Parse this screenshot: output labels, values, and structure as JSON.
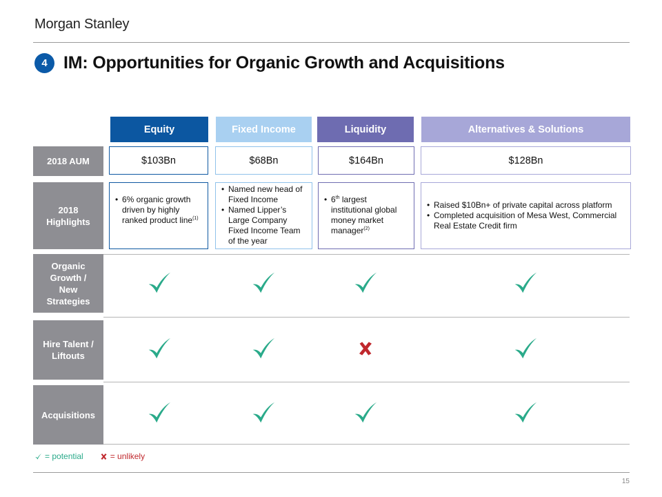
{
  "header": {
    "logo": "Morgan Stanley",
    "section_number": "4",
    "title": "IM: Opportunities for Organic Growth and Acquisitions"
  },
  "columns": [
    {
      "label": "Equity",
      "aum": "$103Bn"
    },
    {
      "label": "Fixed Income",
      "aum": "$68Bn"
    },
    {
      "label": "Liquidity",
      "aum": "$164Bn"
    },
    {
      "label": "Alternatives & Solutions",
      "aum": "$128Bn"
    }
  ],
  "rows": {
    "aum": "2018 AUM",
    "highlights": "2018 Highlights",
    "organic": "Organic Growth / New Strategies",
    "hire": "Hire Talent / Liftouts",
    "acquisitions": "Acquisitions"
  },
  "highlights": {
    "equity": {
      "bullets": [
        "6% organic growth driven by highly ranked product line"
      ],
      "sup": "(1)"
    },
    "fixed_income": {
      "bullets": [
        "Named new head of Fixed Income",
        "Named Lipper’s Large Company Fixed Income Team of the year"
      ]
    },
    "liquidity": {
      "num": "6",
      "sup_th": "th",
      "text": " largest institutional global money market manager",
      "sup": "(2)"
    },
    "alternatives": {
      "bullets": [
        "Raised $10Bn+ of private capital across platform",
        "Completed acquisition of Mesa West, Commercial Real Estate Credit firm"
      ]
    }
  },
  "matrix": {
    "organic": [
      "potential",
      "potential",
      "potential",
      "potential"
    ],
    "hire": [
      "potential",
      "potential",
      "unlikely",
      "potential"
    ],
    "acquisitions": [
      "potential",
      "potential",
      "potential",
      "potential"
    ]
  },
  "legend": {
    "potential": "= potential",
    "unlikely": "= unlikely"
  },
  "colors": {
    "equity": "#0c57a1",
    "fixed_income": "#a9d0f1",
    "liquidity": "#6e6cb1",
    "alternatives": "#a7a7d8",
    "check": "#2aaa8a",
    "cross": "#c0282d",
    "row_label": "#8e8e93"
  },
  "icons": {
    "potential": "checkmark-icon",
    "unlikely": "cross-icon"
  },
  "footer": {
    "page": "15"
  }
}
